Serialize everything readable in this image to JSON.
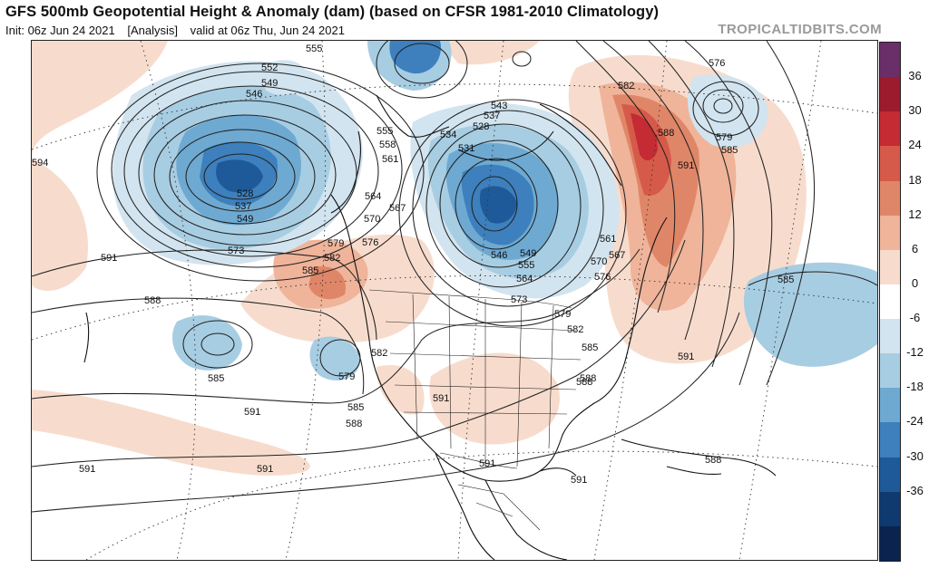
{
  "header": {
    "title": "GFS 500mb Geopotential Height & Anomaly (dam) (based on CFSR 1981-2010 Climatology)",
    "init": "Init: 06z Jun 24 2021",
    "analysis": "[Analysis]",
    "valid": "valid at 06z Thu, Jun 24 2021",
    "brand": "TROPICALTIDBITS.COM"
  },
  "colorbar": {
    "unit": "dam",
    "ticks": [
      "36",
      "30",
      "24",
      "18",
      "12",
      "6",
      "0",
      "-6",
      "-12",
      "-18",
      "-24",
      "-30",
      "-36"
    ],
    "colors": [
      "#6a2e68",
      "#9c1b2d",
      "#c42b33",
      "#d65a4a",
      "#e08668",
      "#efb49a",
      "#f7dccd",
      "#ffffff",
      "#d2e4ef",
      "#a7cde2",
      "#6ea9d1",
      "#3d80bd",
      "#1e5a99",
      "#0e3a70",
      "#0b234f"
    ]
  },
  "map": {
    "contour_labels": [
      "555",
      "552",
      "549",
      "546",
      "528",
      "537",
      "549",
      "573",
      "594",
      "591",
      "588",
      "555",
      "558",
      "561",
      "564",
      "570",
      "567",
      "579",
      "576",
      "582",
      "585",
      "591",
      "585",
      "588",
      "579",
      "582",
      "585",
      "534",
      "531",
      "528",
      "543",
      "537",
      "546",
      "549",
      "555",
      "564",
      "561",
      "567",
      "570",
      "576",
      "573",
      "579",
      "582",
      "585",
      "588",
      "591",
      "576",
      "582",
      "588",
      "591",
      "579",
      "585",
      "585",
      "591",
      "591",
      "591",
      "588",
      "591",
      "591",
      "588"
    ]
  }
}
